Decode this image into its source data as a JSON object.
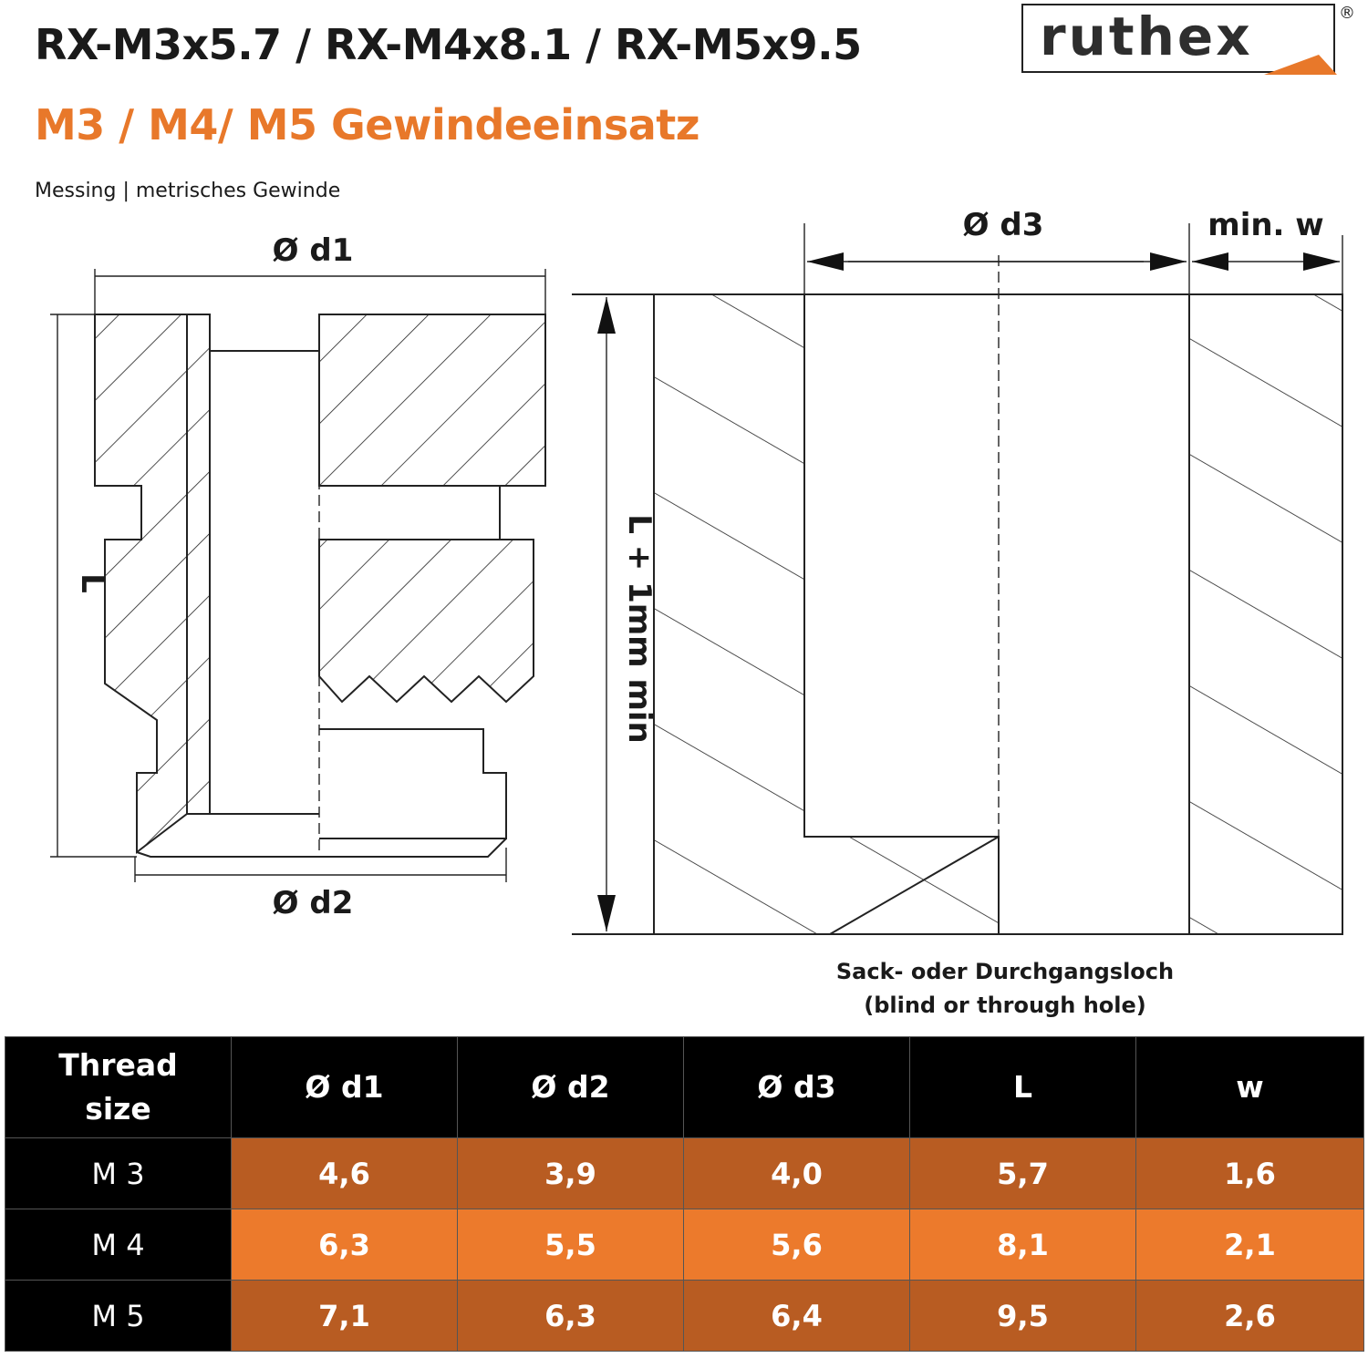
{
  "header": {
    "title": "RX-M3x5.7 / RX-M4x8.1 / RX-M5x9.5",
    "subtitle": "M3 / M4/ M5 Gewindeeinsatz",
    "material": "Messing | metrisches Gewinde"
  },
  "logo": {
    "text": "ruthex",
    "registered": "®"
  },
  "colors": {
    "accent": "#e8782a",
    "row_dark": "#b85c22",
    "row_light": "#ec7a2c",
    "header_bg": "#000000"
  },
  "insert_drawing": {
    "d1_label": "Ø d1",
    "d2_label": "Ø d2",
    "length_label": "L"
  },
  "hole_drawing": {
    "d3_label": "Ø d3",
    "w_label": "min. w",
    "depth_label": "L + 1mm min",
    "caption_line1": "Sack- oder Durchgangsloch",
    "caption_line2": "(blind or through hole)"
  },
  "table": {
    "headers": [
      "Thread size",
      "Ø d1",
      "Ø d2",
      "Ø d3",
      "L",
      "w"
    ],
    "rows": [
      [
        "M 3",
        "4,6",
        "3,9",
        "4,0",
        "5,7",
        "1,6"
      ],
      [
        "M 4",
        "6,3",
        "5,5",
        "5,6",
        "8,1",
        "2,1"
      ],
      [
        "M 5",
        "7,1",
        "6,3",
        "6,4",
        "9,5",
        "2,6"
      ]
    ]
  }
}
